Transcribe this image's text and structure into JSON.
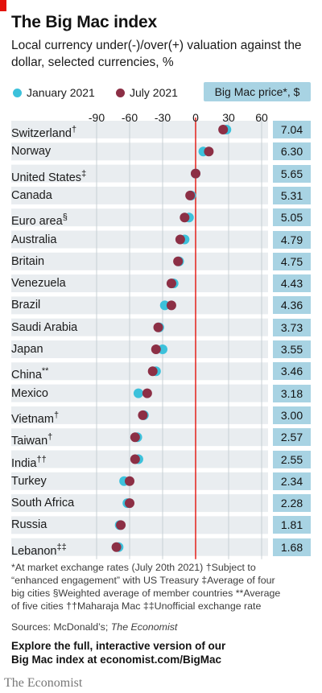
{
  "header": {
    "title": "The Big Mac index",
    "subtitle": "Local currency under(-)/over(+) valuation against the dollar, selected currencies, %"
  },
  "legend": {
    "jan_label": "January 2021",
    "jul_label": "July 2021",
    "price_header": "Big Mac price*, $"
  },
  "colors": {
    "january": "#3cc1db",
    "july": "#8c2f45",
    "zero_line": "#e3120b",
    "price_bg": "#a8d3e3",
    "row_band": "#e9edf0",
    "grid": "#c8d0d5"
  },
  "rows": [
    {
      "name": "Switzerland",
      "mark": "†",
      "price": "7.04"
    },
    {
      "name": "Norway",
      "mark": "",
      "price": "6.30"
    },
    {
      "name": "United States",
      "mark": "‡",
      "price": "5.65"
    },
    {
      "name": "Canada",
      "mark": "",
      "price": "5.31"
    },
    {
      "name": "Euro area",
      "mark": "§",
      "price": "5.05"
    },
    {
      "name": "Australia",
      "mark": "",
      "price": "4.79"
    },
    {
      "name": "Britain",
      "mark": "",
      "price": "4.75"
    },
    {
      "name": "Venezuela",
      "mark": "",
      "price": "4.43"
    },
    {
      "name": "Brazil",
      "mark": "",
      "price": "4.36"
    },
    {
      "name": "Saudi Arabia",
      "mark": "",
      "price": "3.73"
    },
    {
      "name": "Japan",
      "mark": "",
      "price": "3.55"
    },
    {
      "name": "China",
      "mark": "**",
      "price": "3.46"
    },
    {
      "name": "Mexico",
      "mark": "",
      "price": "3.18"
    },
    {
      "name": "Vietnam",
      "mark": "†",
      "price": "3.00"
    },
    {
      "name": "Taiwan",
      "mark": "†",
      "price": "2.57"
    },
    {
      "name": "India",
      "mark": "††",
      "price": "2.55"
    },
    {
      "name": "Turkey",
      "mark": "",
      "price": "2.34"
    },
    {
      "name": "South Africa",
      "mark": "",
      "price": "2.28"
    },
    {
      "name": "Russia",
      "mark": "",
      "price": "1.81"
    },
    {
      "name": "Lebanon",
      "mark": "‡‡",
      "price": "1.68"
    }
  ],
  "chart_data": {
    "type": "scatter",
    "x_ticks": [
      "-90",
      "-60",
      "-30",
      "0",
      "30",
      "60"
    ],
    "xlim": [
      -90,
      60
    ],
    "categories": [
      "Switzerland",
      "Norway",
      "United States",
      "Canada",
      "Euro area",
      "Australia",
      "Britain",
      "Venezuela",
      "Brazil",
      "Saudi Arabia",
      "Japan",
      "China",
      "Mexico",
      "Vietnam",
      "Taiwan",
      "India",
      "Turkey",
      "South Africa",
      "Russia",
      "Lebanon"
    ],
    "series": [
      {
        "name": "January 2021",
        "values": [
          28,
          7,
          0,
          -4,
          -6,
          -10,
          -15,
          -20,
          -28,
          -33,
          -30,
          -36,
          -52,
          -47,
          -53,
          -52,
          -65,
          -62,
          -69,
          -70
        ]
      },
      {
        "name": "July 2021",
        "values": [
          25,
          12,
          0,
          -5,
          -10,
          -14,
          -16,
          -22,
          -22,
          -34,
          -36,
          -39,
          -44,
          -48,
          -55,
          -55,
          -60,
          -60,
          -68,
          -72
        ]
      }
    ],
    "price_header": "Big Mac price*, $",
    "prices": [
      7.04,
      6.3,
      5.65,
      5.31,
      5.05,
      4.79,
      4.75,
      4.43,
      4.36,
      3.73,
      3.55,
      3.46,
      3.18,
      3.0,
      2.57,
      2.55,
      2.34,
      2.28,
      1.81,
      1.68
    ]
  },
  "footnotes": {
    "line1": "*At market exchange rates (July 20th 2021)   †Subject to",
    "line2": "“enhanced engagement” with US Treasury   ‡Average of four",
    "line3": "big cities   §Weighted average of member countries   **Average",
    "line4": "of five cities   ††Maharaja Mac   ‡‡Unofficial exchange rate",
    "sources_prefix": "Sources: McDonald’s; ",
    "sources_italic": "The Economist"
  },
  "explore": {
    "line1": "Explore the full, interactive version of our",
    "line2": "Big Mac index at economist.com/BigMac"
  },
  "brand": "The Economist"
}
